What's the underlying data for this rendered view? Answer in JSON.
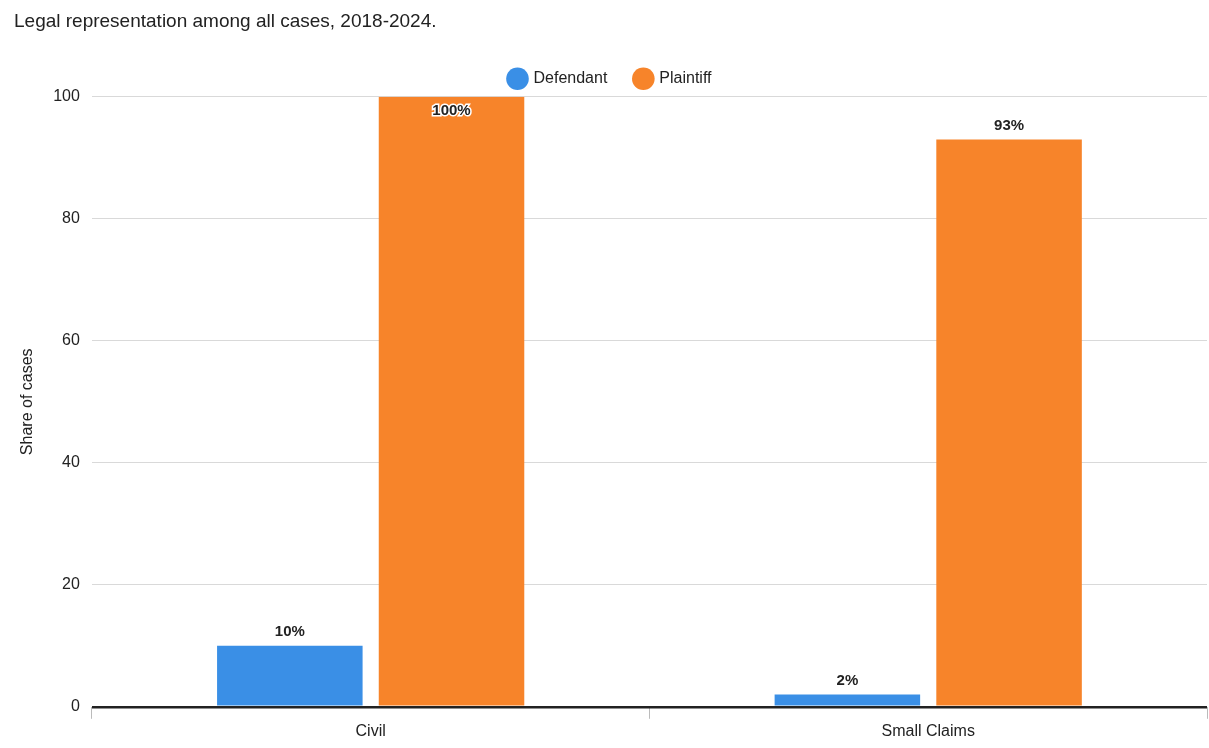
{
  "chart_data": {
    "type": "bar",
    "title": "Legal representation among all cases, 2018-2024.",
    "ylabel": "Share of cases",
    "categories": [
      "Civil",
      "Small Claims"
    ],
    "series": [
      {
        "name": "Defendant",
        "color": "#3a8fe6",
        "values": [
          10,
          2
        ],
        "value_labels": [
          "10%",
          "2%"
        ]
      },
      {
        "name": "Plaintiff",
        "color": "#f7842a",
        "values": [
          100,
          93
        ],
        "value_labels": [
          "100%",
          "93%"
        ]
      }
    ],
    "ylim": [
      0,
      100
    ],
    "yticks": [
      0,
      20,
      40,
      60,
      80,
      100
    ],
    "grid": "y",
    "legend": "top"
  }
}
